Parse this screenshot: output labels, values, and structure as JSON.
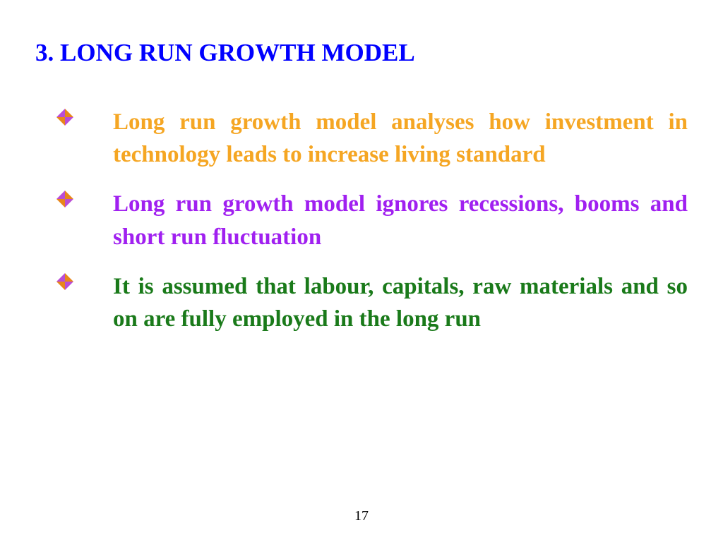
{
  "heading": {
    "text": "3. LONG RUN GROWTH MODEL",
    "color": "#0000ff",
    "fontsize": 35
  },
  "bullets": [
    {
      "text": "Long run growth model analyses how investment in technology leads to increase living standard",
      "text_color": "#f5a623",
      "marker_colors": {
        "top": "#e8861b",
        "right": "#b94dd6",
        "bottom": "#e8861b",
        "left": "#b94dd6"
      }
    },
    {
      "text": "Long run growth model ignores recessions, booms and short run fluctuation",
      "text_color": "#a020f0",
      "marker_colors": {
        "top": "#e8861b",
        "right": "#b94dd6",
        "bottom": "#e8861b",
        "left": "#b94dd6"
      }
    },
    {
      "text": "It is assumed that labour, capitals, raw materials and so on are fully employed in the long run",
      "text_color": "#1a7a1a",
      "marker_colors": {
        "top": "#e8861b",
        "right": "#b94dd6",
        "bottom": "#e8861b",
        "left": "#b94dd6"
      }
    }
  ],
  "page_number": "17",
  "background_color": "#ffffff",
  "font_family": "Times New Roman"
}
